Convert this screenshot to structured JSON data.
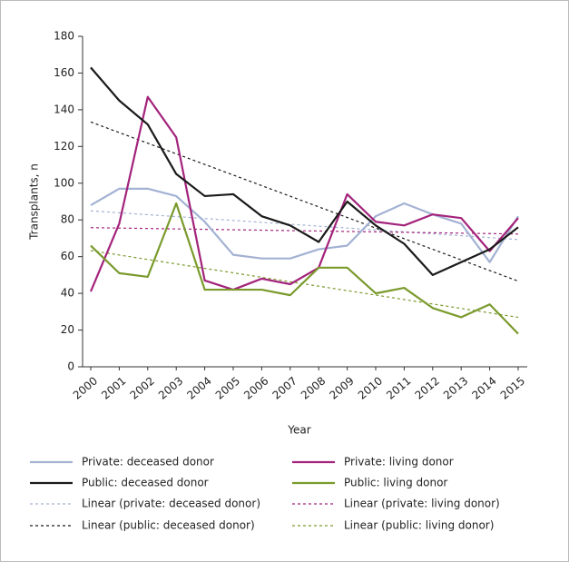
{
  "chart_data": {
    "type": "line",
    "x_label": "Year",
    "y_label": "Transplants, n",
    "categories": [
      "2000",
      "2001",
      "2002",
      "2003",
      "2004",
      "2005",
      "2006",
      "2007",
      "2008",
      "2009",
      "2010",
      "2011",
      "2012",
      "2013",
      "2014",
      "2015"
    ],
    "ylim": [
      0,
      180
    ],
    "yticks": [
      0,
      20,
      40,
      60,
      80,
      100,
      120,
      140,
      160,
      180
    ],
    "series": [
      {
        "name": "Private: deceased donor",
        "color": "#a3b2d3",
        "values": [
          88,
          97,
          97,
          93,
          79,
          61,
          59,
          59,
          64,
          66,
          82,
          89,
          83,
          78,
          57,
          82
        ],
        "trendline": {
          "name": "Linear (private: deceased donor)"
        }
      },
      {
        "name": "Private: living donor",
        "color": "#a3237b",
        "values": [
          41,
          78,
          147,
          125,
          47,
          42,
          48,
          45,
          54,
          94,
          79,
          77,
          83,
          81,
          63,
          81
        ],
        "trendline": {
          "name": "Linear (private: living donor)"
        }
      },
      {
        "name": "Public: deceased donor",
        "color": "#1a1a1a",
        "values": [
          163,
          145,
          132,
          105,
          93,
          94,
          82,
          77,
          68,
          90,
          77,
          67,
          50,
          57,
          64,
          76
        ],
        "trendline": {
          "name": "Linear (public: deceased donor)"
        }
      },
      {
        "name": "Public: living donor",
        "color": "#7a9a2c",
        "values": [
          66,
          51,
          49,
          89,
          42,
          42,
          42,
          39,
          54,
          54,
          40,
          43,
          32,
          27,
          34,
          18
        ],
        "trendline": {
          "name": "Linear (public: living donor)"
        }
      }
    ]
  }
}
